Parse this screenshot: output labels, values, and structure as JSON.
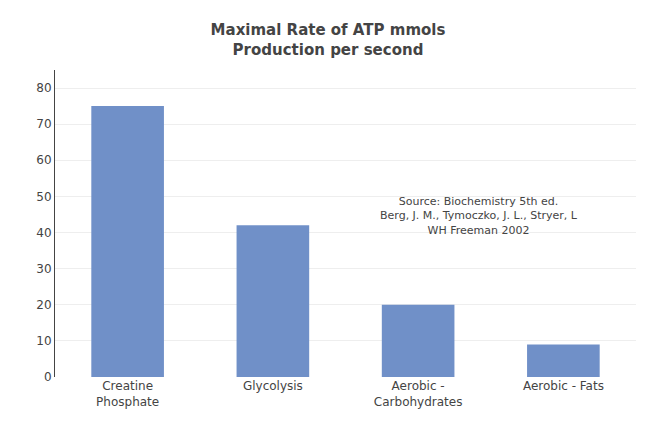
{
  "chart_data": {
    "type": "bar",
    "title": "Maximal Rate of ATP mmols\nProduction per second",
    "categories": [
      "Creatine\nPhosphate",
      "Glycolysis",
      "Aerobic -\nCarbohydrates",
      "Aerobic - Fats"
    ],
    "values": [
      75,
      42,
      20,
      9
    ],
    "color": "#7090C8",
    "ylim": [
      0,
      85
    ],
    "yticks": [
      0,
      10,
      20,
      30,
      40,
      50,
      60,
      70,
      80
    ],
    "grid": true,
    "annotations": [
      "Source: Biochemistry 5th ed.\nBerg, J. M., Tymoczko, J. L., Stryer, L\nWH Freeman 2002"
    ]
  }
}
